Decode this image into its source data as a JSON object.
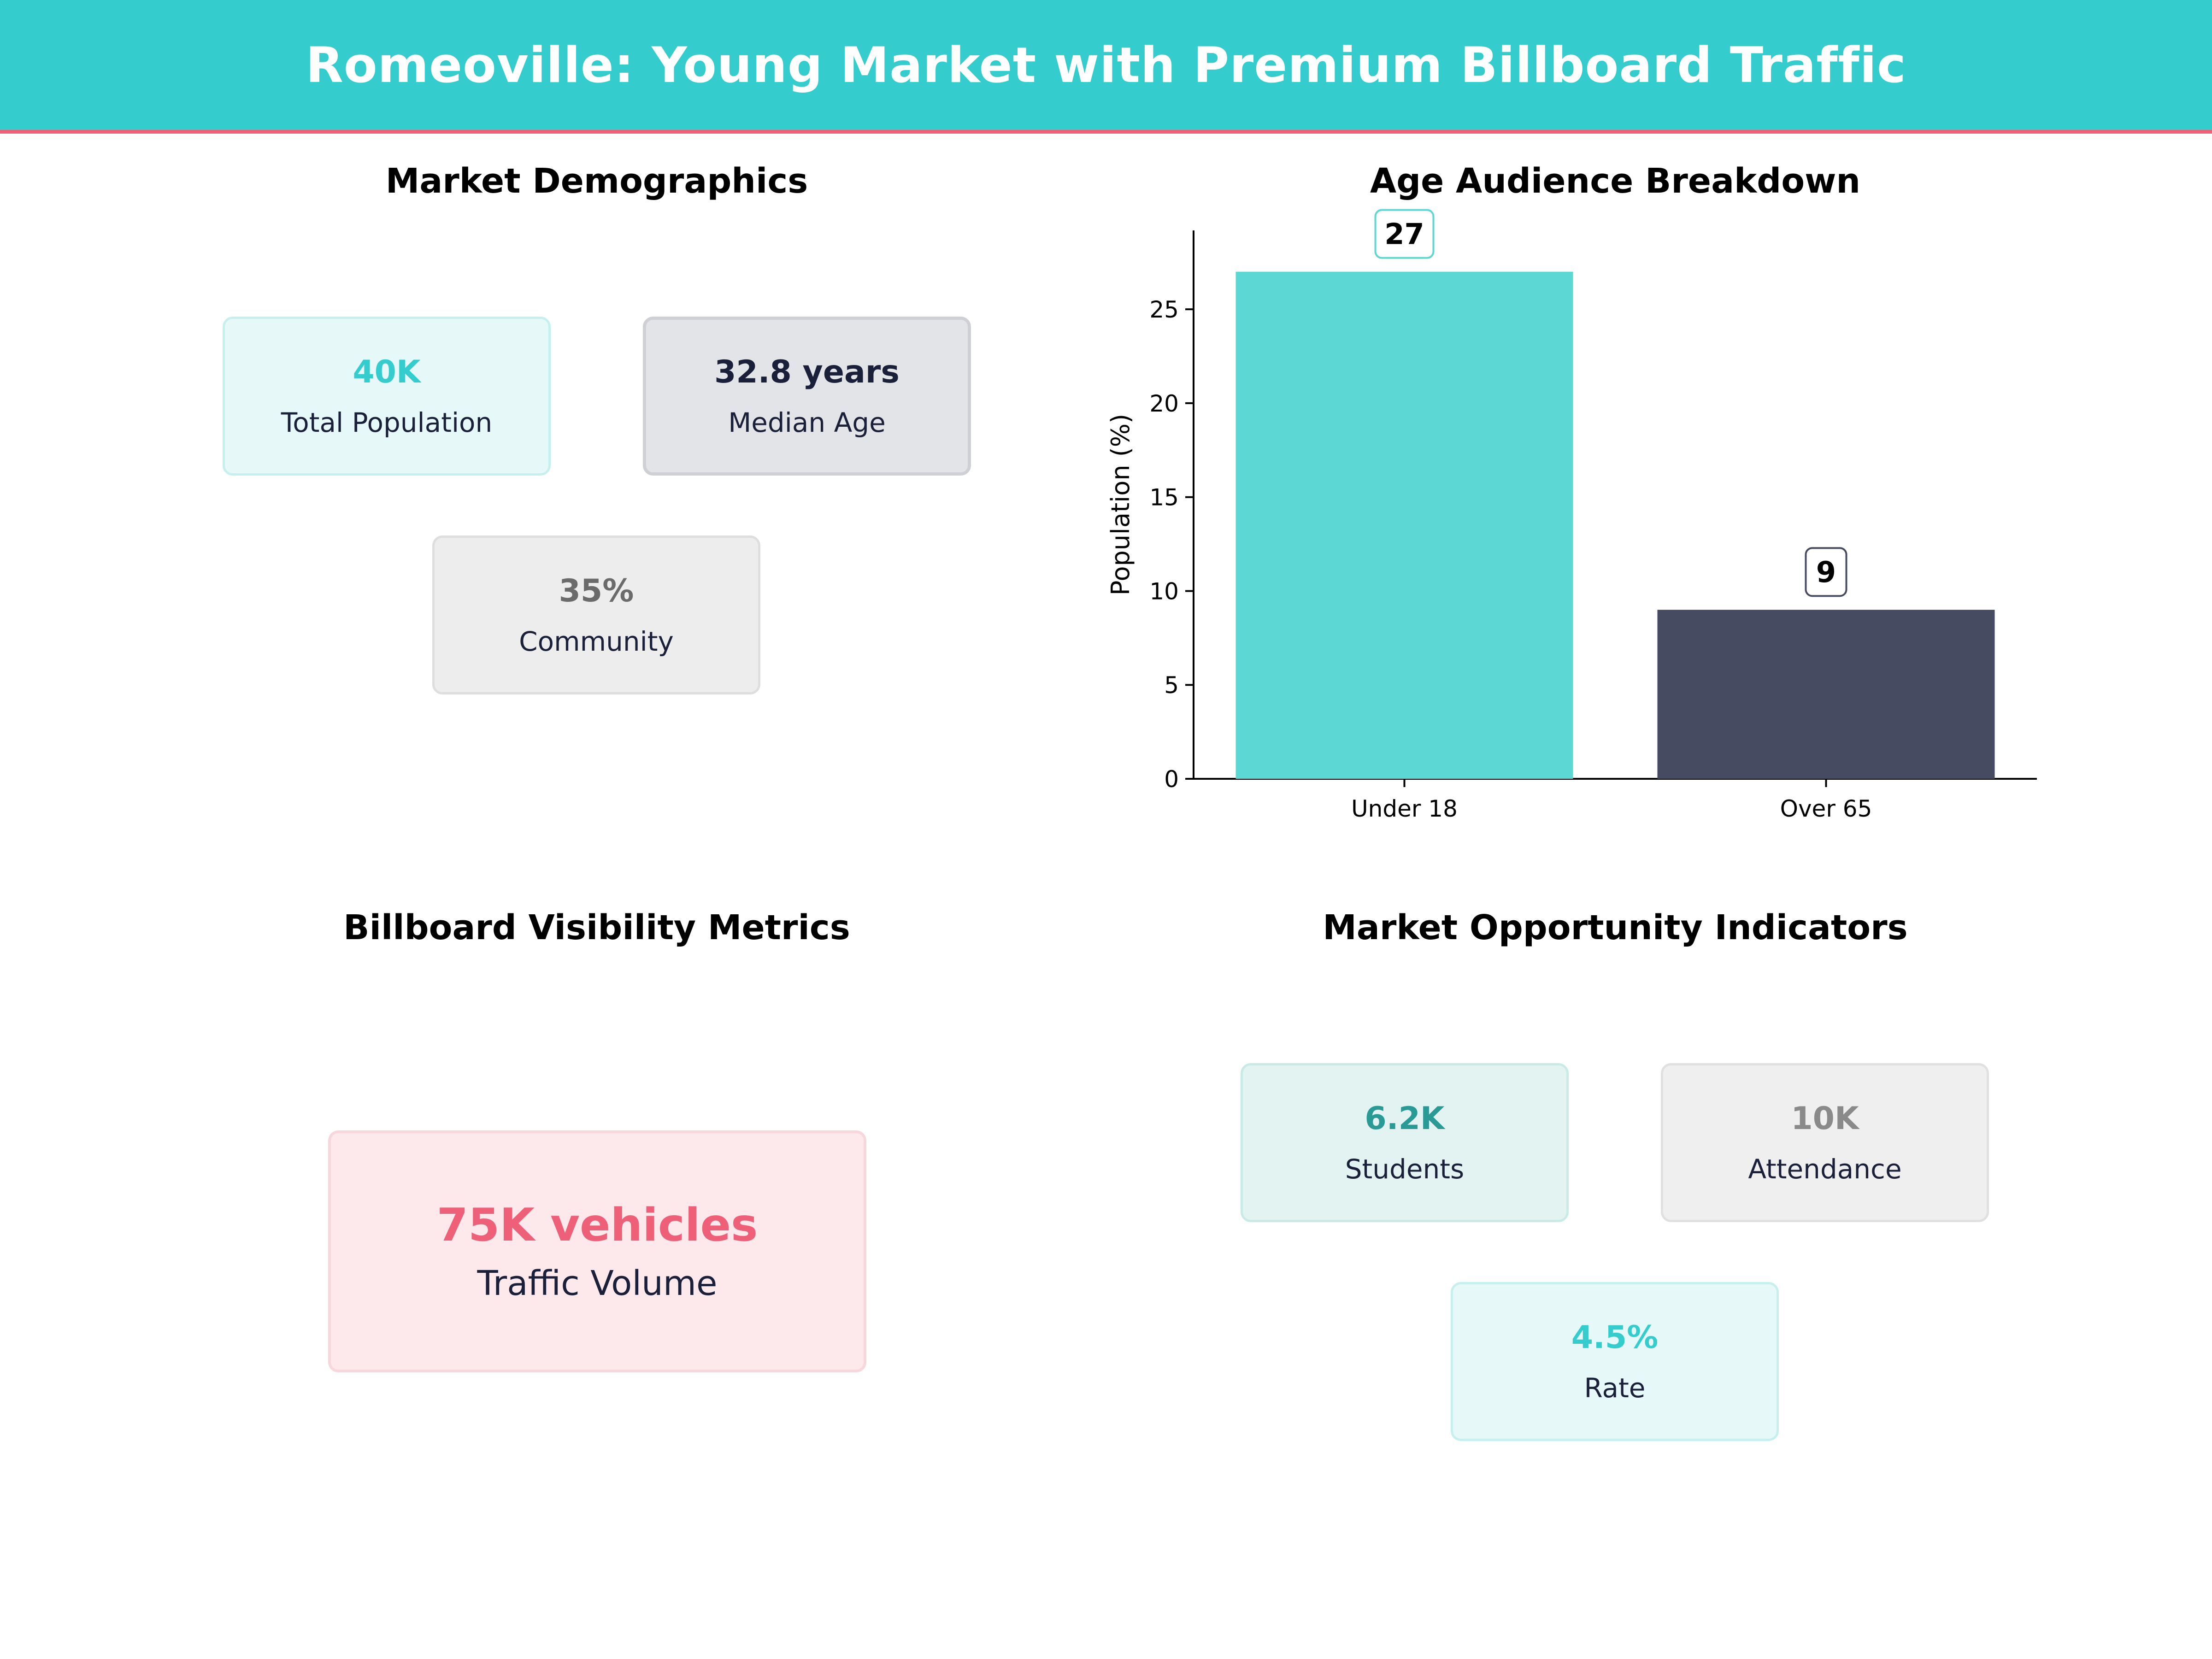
{
  "header": {
    "title": "Romeoville: Young Market with Premium Billboard Traffic"
  },
  "demographics": {
    "title": "Market Demographics",
    "cards": [
      {
        "value": "40K",
        "label": "Total Population"
      },
      {
        "value": "32.8 years",
        "label": "Median Age"
      },
      {
        "value": "35%",
        "label": "Community"
      }
    ]
  },
  "visibility": {
    "title": "Billboard Visibility Metrics",
    "cards": [
      {
        "value": "75K vehicles",
        "label": "Traffic Volume"
      }
    ]
  },
  "opportunity": {
    "title": "Market Opportunity Indicators",
    "cards": [
      {
        "value": "6.2K",
        "label": "Students"
      },
      {
        "value": "10K",
        "label": "Attendance"
      },
      {
        "value": "4.5%",
        "label": "Rate"
      }
    ]
  },
  "colors": {
    "header_bg": "#34cccc",
    "header_border": "#ee5f78",
    "bar_under_18": "#5cd7d4",
    "bar_over_65": "#474b61"
  },
  "chart_data": {
    "type": "bar",
    "title": "Age Audience Breakdown",
    "categories": [
      "Under 18",
      "Over 65"
    ],
    "values": [
      27,
      9
    ],
    "data_labels": [
      "27",
      "9"
    ],
    "ylabel": "Population (%)",
    "xlabel": "",
    "ylim": [
      0,
      29.2
    ],
    "yticks": [
      0,
      5,
      10,
      15,
      20,
      25
    ],
    "grid": false,
    "legend": "none"
  }
}
